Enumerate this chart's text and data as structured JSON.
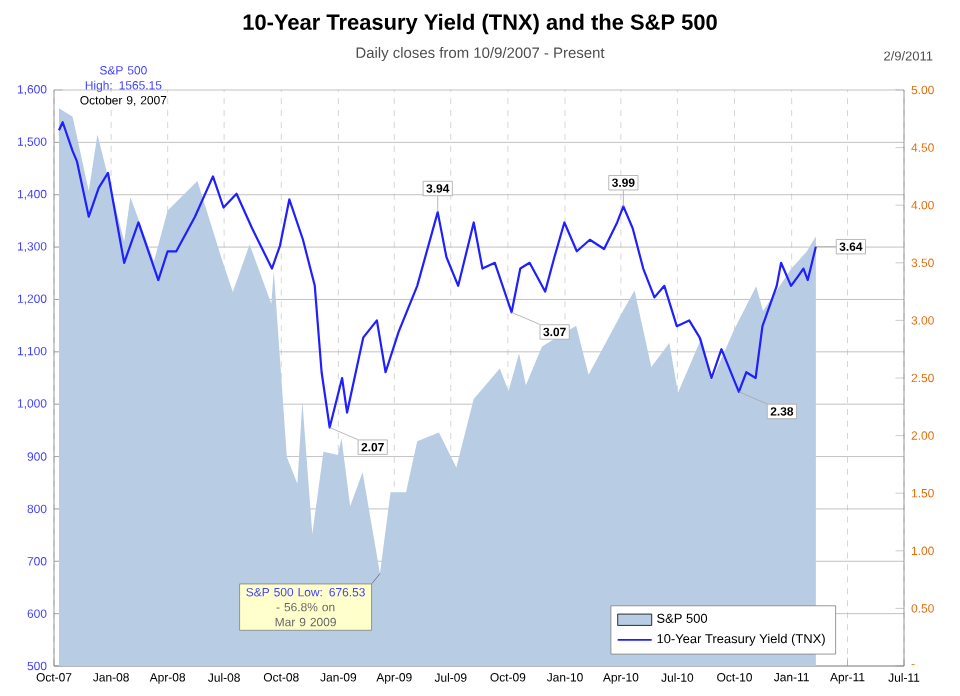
{
  "chart_data": {
    "type": "area",
    "title": "10-Year Treasury Yield (TNX) and the S&P 500",
    "subtitle": "Daily closes from 10/9/2007 - Present",
    "series": [
      {
        "name": "S&P 500",
        "color": "#b8cce4",
        "x": [
          "2007-10-09",
          "2007-10-31",
          "2007-11-26",
          "2007-12-10",
          "2008-01-22",
          "2008-02-01",
          "2008-03-10",
          "2008-04-01",
          "2008-05-19",
          "2008-06-27",
          "2008-07-15",
          "2008-08-11",
          "2008-09-15",
          "2008-09-19",
          "2008-10-10",
          "2008-10-27",
          "2008-11-04",
          "2008-11-20",
          "2008-12-08",
          "2008-12-31",
          "2009-01-06",
          "2009-01-20",
          "2009-02-09",
          "2009-03-09",
          "2009-03-26",
          "2009-04-20",
          "2009-05-08",
          "2009-06-12",
          "2009-07-10",
          "2009-08-07",
          "2009-09-18",
          "2009-10-02",
          "2009-10-19",
          "2009-10-30",
          "2009-11-25",
          "2010-01-19",
          "2010-02-08",
          "2010-03-31",
          "2010-04-23",
          "2010-05-20",
          "2010-06-18",
          "2010-07-02",
          "2010-08-09",
          "2010-08-26",
          "2010-09-30",
          "2010-11-05",
          "2010-11-16",
          "2010-12-31",
          "2011-01-25",
          "2011-02-09"
        ],
        "values": [
          1565.15,
          1549,
          1407,
          1515,
          1310,
          1395,
          1273,
          1370,
          1426,
          1278,
          1214,
          1305,
          1192,
          1255,
          899,
          848,
          1005,
          752,
          909,
          903,
          935,
          805,
          870,
          676.53,
          832,
          832,
          929,
          946,
          879,
          1010,
          1068,
          1025,
          1097,
          1036,
          1110,
          1150,
          1056,
          1169,
          1217,
          1071,
          1117,
          1022,
          1127,
          1047,
          1141,
          1225,
          1178,
          1258,
          1291,
          1320
        ]
      },
      {
        "name": "10-Year Treasury Yield (TNX)",
        "type": "line",
        "axis": "y2",
        "color": "#1f1fff",
        "x": [
          "2007-10-09",
          "2007-10-15",
          "2007-10-31",
          "2007-11-07",
          "2007-11-26",
          "2007-12-12",
          "2007-12-27",
          "2008-01-22",
          "2008-02-14",
          "2008-03-17",
          "2008-04-01",
          "2008-04-15",
          "2008-05-15",
          "2008-06-13",
          "2008-06-30",
          "2008-07-21",
          "2008-08-15",
          "2008-09-16",
          "2008-09-29",
          "2008-10-14",
          "2008-11-05",
          "2008-11-24",
          "2008-12-05",
          "2008-12-18",
          "2009-01-07",
          "2009-01-15",
          "2009-02-10",
          "2009-03-04",
          "2009-03-18",
          "2009-04-08",
          "2009-05-08",
          "2009-06-10",
          "2009-06-24",
          "2009-07-13",
          "2009-08-07",
          "2009-08-21",
          "2009-09-10",
          "2009-10-07",
          "2009-10-21",
          "2009-11-05",
          "2009-11-30",
          "2009-12-15",
          "2009-12-31",
          "2010-01-20",
          "2010-02-10",
          "2010-03-05",
          "2010-03-26",
          "2010-04-05",
          "2010-04-20",
          "2010-05-07",
          "2010-05-25",
          "2010-06-10",
          "2010-06-30",
          "2010-07-20",
          "2010-08-06",
          "2010-08-25",
          "2010-09-10",
          "2010-10-08",
          "2010-10-20",
          "2010-11-04",
          "2010-11-15",
          "2010-12-08",
          "2010-12-15",
          "2010-12-31",
          "2011-01-11",
          "2011-01-20",
          "2011-01-27",
          "2011-02-09"
        ],
        "values": [
          4.65,
          4.72,
          4.47,
          4.38,
          3.9,
          4.15,
          4.28,
          3.5,
          3.85,
          3.35,
          3.6,
          3.6,
          3.9,
          4.25,
          3.98,
          4.1,
          3.8,
          3.45,
          3.65,
          4.05,
          3.7,
          3.3,
          2.55,
          2.07,
          2.5,
          2.2,
          2.85,
          3.0,
          2.55,
          2.9,
          3.3,
          3.94,
          3.55,
          3.3,
          3.85,
          3.45,
          3.5,
          3.07,
          3.45,
          3.5,
          3.25,
          3.55,
          3.85,
          3.6,
          3.7,
          3.62,
          3.85,
          3.99,
          3.8,
          3.45,
          3.2,
          3.3,
          2.95,
          3.0,
          2.85,
          2.5,
          2.75,
          2.38,
          2.55,
          2.5,
          2.95,
          3.3,
          3.5,
          3.3,
          3.38,
          3.45,
          3.35,
          3.64
        ],
        "value_labels": [
          null,
          null,
          null,
          null,
          null,
          null,
          null,
          null,
          null,
          null,
          null,
          null,
          null,
          null,
          null,
          null,
          null,
          null,
          null,
          null,
          null,
          null,
          null,
          "2.07",
          null,
          null,
          null,
          null,
          null,
          null,
          null,
          "3.94",
          null,
          null,
          null,
          null,
          null,
          "3.07",
          null,
          null,
          null,
          null,
          null,
          null,
          null,
          null,
          null,
          "3.99",
          null,
          null,
          null,
          null,
          null,
          null,
          null,
          null,
          null,
          "2.38",
          null,
          null,
          null,
          null,
          null,
          null,
          null,
          null,
          null,
          "3.64"
        ]
      }
    ],
    "xlim": [
      "2007-10-01",
      "2011-07-01"
    ],
    "xticks": [
      {
        "value": "2007-10-01",
        "label": "Oct-07"
      },
      {
        "value": "2008-01-01",
        "label": "Jan-08"
      },
      {
        "value": "2008-04-01",
        "label": "Apr-08"
      },
      {
        "value": "2008-07-01",
        "label": "Jul-08"
      },
      {
        "value": "2008-10-01",
        "label": "Oct-08"
      },
      {
        "value": "2009-01-01",
        "label": "Jan-09"
      },
      {
        "value": "2009-04-01",
        "label": "Apr-09"
      },
      {
        "value": "2009-07-01",
        "label": "Jul-09"
      },
      {
        "value": "2009-10-01",
        "label": "Oct-09"
      },
      {
        "value": "2010-01-01",
        "label": "Jan-10"
      },
      {
        "value": "2010-04-01",
        "label": "Apr-10"
      },
      {
        "value": "2010-07-01",
        "label": "Jul-10"
      },
      {
        "value": "2010-10-01",
        "label": "Oct-10"
      },
      {
        "value": "2011-01-01",
        "label": "Jan-11"
      },
      {
        "value": "2011-04-01",
        "label": "Apr-11"
      },
      {
        "value": "2011-07-01",
        "label": "Jul-11"
      }
    ],
    "ylim": [
      500,
      1600
    ],
    "yticks": [
      500,
      600,
      700,
      800,
      900,
      {
        "value": 1000,
        "label": "1,000"
      },
      {
        "value": 1100,
        "label": "1,100"
      },
      {
        "value": 1200,
        "label": "1,200"
      },
      {
        "value": 1300,
        "label": "1,300"
      },
      {
        "value": 1400,
        "label": "1,400"
      },
      {
        "value": 1500,
        "label": "1,500"
      },
      {
        "value": 1600,
        "label": "1,600"
      }
    ],
    "y2lim": [
      0,
      5
    ],
    "y2ticks": [
      {
        "value": 0,
        "label": "-"
      },
      {
        "value": 0.5,
        "label": "0.50"
      },
      {
        "value": 1,
        "label": "1.00"
      },
      {
        "value": 1.5,
        "label": "1.50"
      },
      {
        "value": 2,
        "label": "2.00"
      },
      {
        "value": 2.5,
        "label": "2.50"
      },
      {
        "value": 3,
        "label": "3.00"
      },
      {
        "value": 3.5,
        "label": "3.50"
      },
      {
        "value": 4,
        "label": "4.00"
      },
      {
        "value": 4.5,
        "label": "4.50"
      },
      {
        "value": 5,
        "label": "5.00"
      }
    ],
    "annotations": [
      {
        "text": "S&P 500 High: 1565.15",
        "x": "2007-10-09",
        "y": 1565.15
      },
      "October 9, 2007",
      {
        "text": "S&P 500 Low: 676.53",
        "x": "2009-03-09",
        "y": 676.53
      },
      "- 56.8% on Mar 9 2009",
      "2/9/2011"
    ],
    "grid": true,
    "legend": "bottom right"
  }
}
